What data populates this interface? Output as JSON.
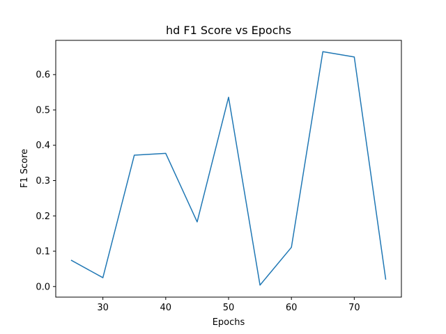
{
  "chart_data": {
    "type": "line",
    "title": "hd F1 Score vs Epochs",
    "xlabel": "Epochs",
    "ylabel": "F1 Score",
    "xlim": [
      22.5,
      77.5
    ],
    "ylim": [
      -0.03,
      0.697
    ],
    "xticks": [
      30,
      40,
      50,
      60,
      70
    ],
    "yticks": [
      0.0,
      0.1,
      0.2,
      0.3,
      0.4,
      0.5,
      0.6
    ],
    "xtick_labels": [
      "30",
      "40",
      "50",
      "60",
      "70"
    ],
    "ytick_labels": [
      "0.0",
      "0.1",
      "0.2",
      "0.3",
      "0.4",
      "0.5",
      "0.6"
    ],
    "grid": false,
    "legend": "none",
    "series": [
      {
        "color": "#1f77b4",
        "x": [
          25,
          30,
          35,
          40,
          45,
          50,
          55,
          60,
          65,
          70,
          75
        ],
        "y": [
          0.074,
          0.025,
          0.372,
          0.377,
          0.183,
          0.536,
          0.004,
          0.111,
          0.665,
          0.65,
          0.021
        ]
      }
    ]
  }
}
